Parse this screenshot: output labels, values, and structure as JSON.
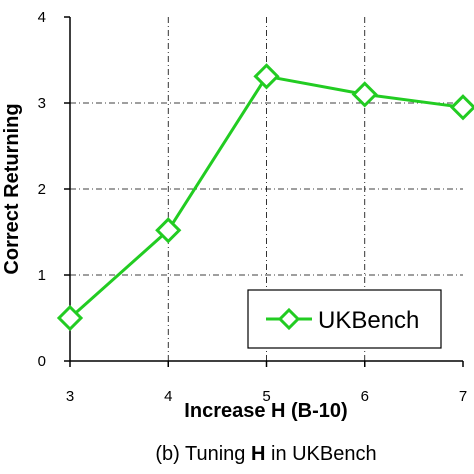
{
  "chart_data": {
    "type": "line",
    "x": [
      3,
      4,
      5,
      6,
      7
    ],
    "series": [
      {
        "name": "UKBench",
        "values": [
          0.5,
          1.52,
          3.31,
          3.1,
          2.95
        ],
        "color": "#22cc22",
        "marker": "diamond"
      }
    ],
    "xlabel": "Increase H (B-10)",
    "ylabel": "Correct Returning",
    "xlim": [
      3,
      7
    ],
    "ylim": [
      0,
      4
    ],
    "xticks": [
      "3",
      "4",
      "5",
      "6",
      "7"
    ],
    "yticks": [
      "0",
      "1",
      "2",
      "3",
      "4"
    ],
    "grid": true,
    "legend_position": "bottom-right"
  },
  "caption": {
    "prefix": "(b) Tuning ",
    "bold": "H",
    "suffix": " in UKBench"
  }
}
